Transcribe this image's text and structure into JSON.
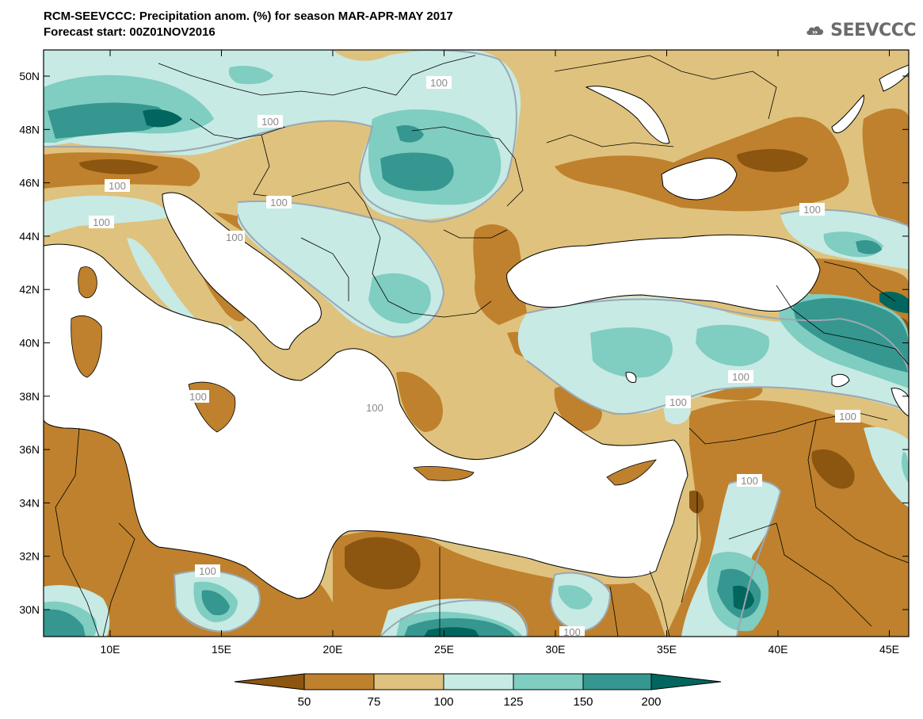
{
  "title_line1": "RCM-SEEVCCC: Precipitation anom. (%) for season MAR-APR-MAY 2017",
  "title_line2": "Forecast start: 00Z01NOV2016",
  "logo_text": "SEEVCCC",
  "colors": {
    "very_dry": "#8c5510",
    "dry": "#bf812d",
    "slightly_dry": "#dfc27d",
    "slightly_wet": "#c7eae5",
    "wet": "#80cdc1",
    "very_wet": "#35978f",
    "extreme_wet": "#01665e",
    "sea": "#ffffff",
    "contour_100": "#9aa8b4"
  },
  "map": {
    "lon_ticks": [
      "10E",
      "15E",
      "20E",
      "25E",
      "30E",
      "35E",
      "40E",
      "45E"
    ],
    "lat_ticks": [
      "50N",
      "48N",
      "46N",
      "44N",
      "42N",
      "40N",
      "38N",
      "36N",
      "34N",
      "32N",
      "30N"
    ],
    "contour_labels": [
      "100",
      "100",
      "100",
      "100",
      "100",
      "100",
      "100",
      "100",
      "100",
      "100",
      "100",
      "100",
      "100",
      "100",
      "100",
      "100"
    ]
  },
  "colorbar": {
    "labels": [
      "50",
      "75",
      "100",
      "125",
      "150",
      "200"
    ]
  }
}
